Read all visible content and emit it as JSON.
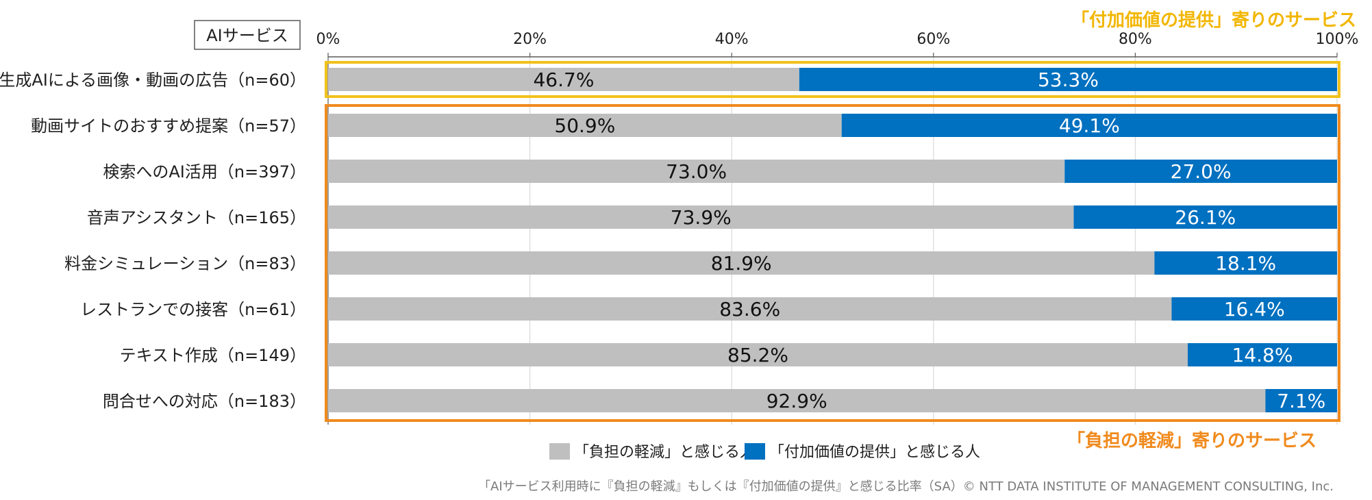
{
  "chart_data": {
    "type": "bar",
    "orientation": "horizontal",
    "stacked": true,
    "header_label": "AIサービス",
    "categories": [
      "生成AIによる画像・動画の広告（n=60）",
      "動画サイトのおすすめ提案（n=57）",
      "検索へのAI活用（n=397）",
      "音声アシスタント（n=165）",
      "料金シミュレーション（n=83）",
      "レストランでの接客（n=61）",
      "テキスト作成（n=149）",
      "問合せへの対応（n=183）"
    ],
    "series": [
      {
        "name": "「負担の軽減」と感じる人",
        "color": "#bfbfbf",
        "values": [
          46.7,
          50.9,
          73.0,
          73.9,
          81.9,
          83.6,
          85.2,
          92.9
        ]
      },
      {
        "name": "「付加価値の提供」と感じる人",
        "color": "#0070c0",
        "values": [
          53.3,
          49.1,
          27.0,
          26.1,
          18.1,
          16.4,
          14.8,
          7.1
        ]
      }
    ],
    "value_labels": [
      [
        "46.7%",
        "53.3%"
      ],
      [
        "50.9%",
        "49.1%"
      ],
      [
        "73.0%",
        "27.0%"
      ],
      [
        "73.9%",
        "26.1%"
      ],
      [
        "81.9%",
        "18.1%"
      ],
      [
        "83.6%",
        "16.4%"
      ],
      [
        "85.2%",
        "14.8%"
      ],
      [
        "92.9%",
        "7.1%"
      ]
    ],
    "xlim": [
      0,
      100
    ],
    "x_ticks": [
      "0%",
      "20%",
      "40%",
      "60%",
      "80%",
      "100%"
    ],
    "grid": true,
    "legend_position": "bottom",
    "annotations": {
      "top": {
        "text": "「付加価値の提供」寄りのサービス",
        "color": "#f2b600"
      },
      "bottom": {
        "text": "「負担の軽減」寄りのサービス",
        "color": "#f08a1d"
      }
    }
  },
  "footer": "「AIサービス利用時に『負担の軽減』もしくは『付加価値の提供』と感じる比率（SA）© NTT DATA INSTITUTE OF MANAGEMENT CONSULTING, Inc."
}
